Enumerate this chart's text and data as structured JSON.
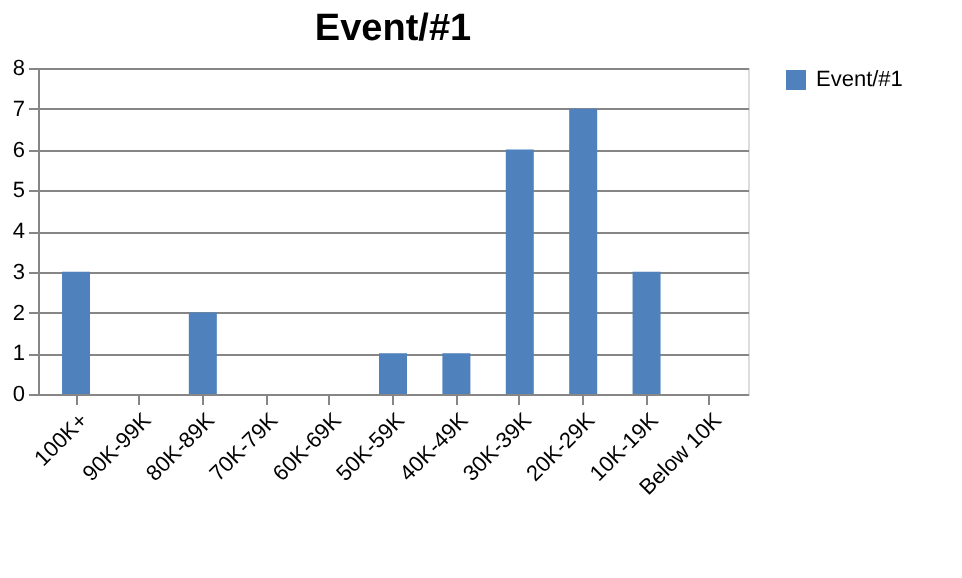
{
  "chart_data": {
    "type": "bar",
    "title": "Event/#1",
    "categories": [
      "100K+",
      "90K-99K",
      "80K-89K",
      "70K-79K",
      "60K-69K",
      "50K-59K",
      "40K-49K",
      "30K-39K",
      "20K-29K",
      "10K-19K",
      "Below 10K"
    ],
    "series": [
      {
        "name": "Event/#1",
        "color": "#4f81bd",
        "values": [
          3,
          0,
          2,
          0,
          0,
          1,
          1,
          6,
          7,
          3,
          0
        ]
      }
    ],
    "ylim": [
      0,
      8
    ],
    "yticks": [
      0,
      1,
      2,
      3,
      4,
      5,
      6,
      7,
      8
    ],
    "grid": "y",
    "legend": "right"
  }
}
